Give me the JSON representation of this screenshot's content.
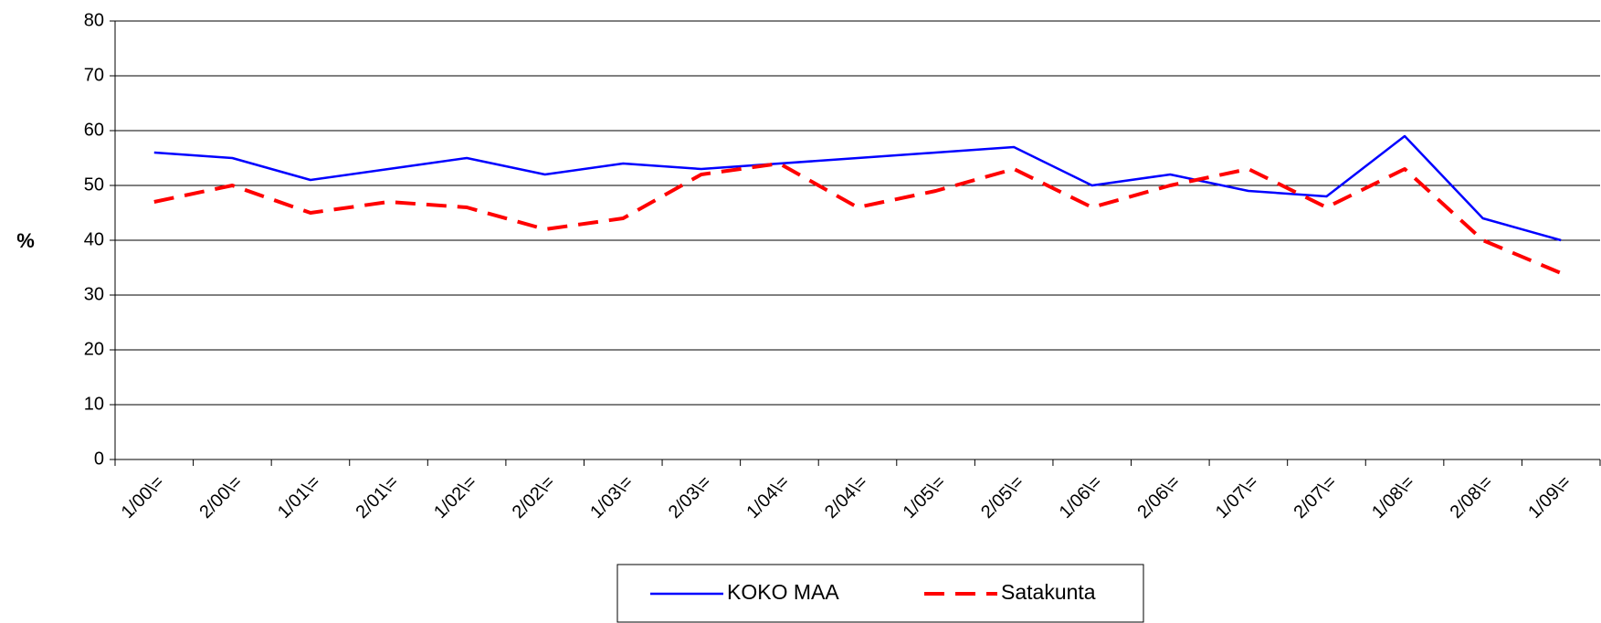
{
  "chart_data": {
    "type": "line",
    "y_label": "%",
    "categories": [
      "1/00\\=",
      "2/00\\=",
      "1/01\\=",
      "2/01\\=",
      "1/02\\=",
      "2/02\\=",
      "1/03\\=",
      "2/03\\=",
      "1/04\\=",
      "2/04\\=",
      "1/05\\=",
      "2/05\\=",
      "1/06\\=",
      "2/06\\=",
      "1/07\\=",
      "2/07\\=",
      "1/08\\=",
      "2/08\\=",
      "1/09\\="
    ],
    "series": [
      {
        "name": "KOKO MAA",
        "color": "#0000ff",
        "dash": "solid",
        "values": [
          56,
          55,
          51,
          53,
          55,
          52,
          54,
          53,
          54,
          55,
          56,
          57,
          50,
          52,
          49,
          48,
          59,
          44,
          40
        ]
      },
      {
        "name": "Satakunta",
        "color": "#ff0000",
        "dash": "dashed",
        "values": [
          47,
          50,
          45,
          47,
          46,
          42,
          44,
          52,
          54,
          46,
          49,
          53,
          46,
          50,
          53,
          46,
          53,
          40,
          34
        ]
      }
    ],
    "ylim": [
      0,
      80
    ],
    "yticks": [
      0,
      10,
      20,
      30,
      40,
      50,
      60,
      70,
      80
    ],
    "grid": true,
    "legend": "bottom"
  }
}
